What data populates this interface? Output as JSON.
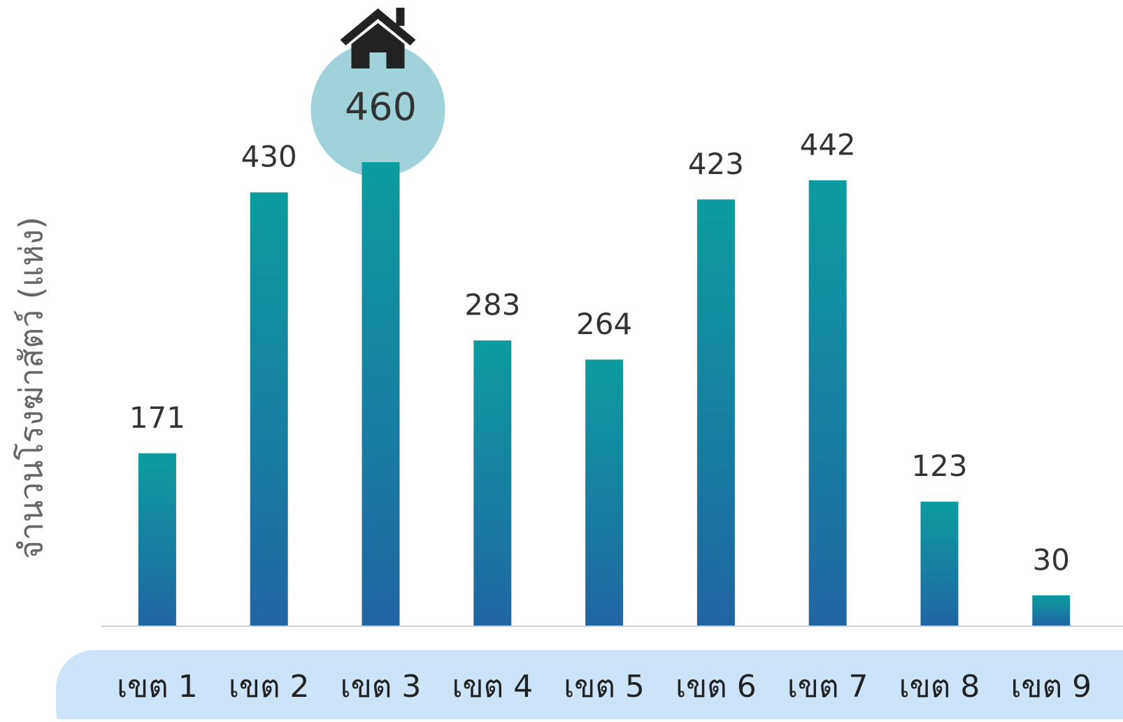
{
  "chart_data": {
    "type": "bar",
    "y_label": "จำนวนโรงฆ่าสัตว์ (แห่ง)",
    "categories": [
      "เขต 1",
      "เขต 2",
      "เขต 3",
      "เขต 4",
      "เขต 5",
      "เขต 6",
      "เขต 7",
      "เขต 8",
      "เขต 9"
    ],
    "values": [
      171,
      430,
      460,
      283,
      264,
      423,
      442,
      123,
      30
    ],
    "color": [
      "#0c9ca0",
      "#2165a3"
    ],
    "ylim": [
      0,
      460
    ]
  }
}
